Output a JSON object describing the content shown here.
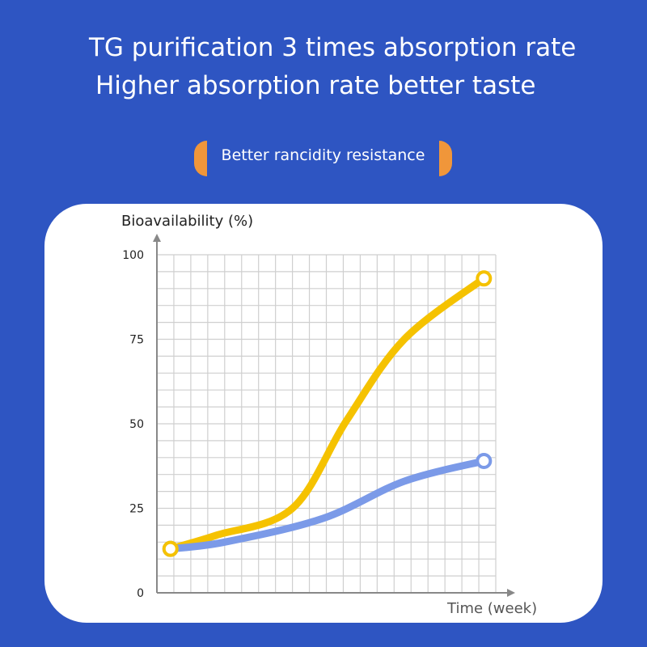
{
  "header": {
    "title_line1": "TG purification 3 times absorption rate",
    "title_line2": "Higher absorption rate better taste",
    "badge": "Better rancidity resistance"
  },
  "colors": {
    "background": "#2e55c2",
    "accent": "#f0963a",
    "series_tg": "#f5c200",
    "series_other": "#7b9ae8"
  },
  "chart_data": {
    "type": "line",
    "title": "",
    "ylabel": "Bioavailability (%)",
    "xlabel": "Time (week)",
    "ylim": [
      0,
      100
    ],
    "yticks": [
      "0",
      "25",
      "50",
      "75",
      "100"
    ],
    "grid": true,
    "series": [
      {
        "color": "#f5c200",
        "points": [
          [
            0.8,
            13
          ],
          [
            3.5,
            17
          ],
          [
            8,
            25
          ],
          [
            11.2,
            51
          ],
          [
            14.6,
            75
          ],
          [
            19.3,
            93
          ]
        ]
      },
      {
        "color": "#7b9ae8",
        "points": [
          [
            0.8,
            13
          ],
          [
            4,
            15
          ],
          [
            9.8,
            22
          ],
          [
            14.6,
            33
          ],
          [
            19.3,
            39
          ]
        ]
      }
    ]
  }
}
